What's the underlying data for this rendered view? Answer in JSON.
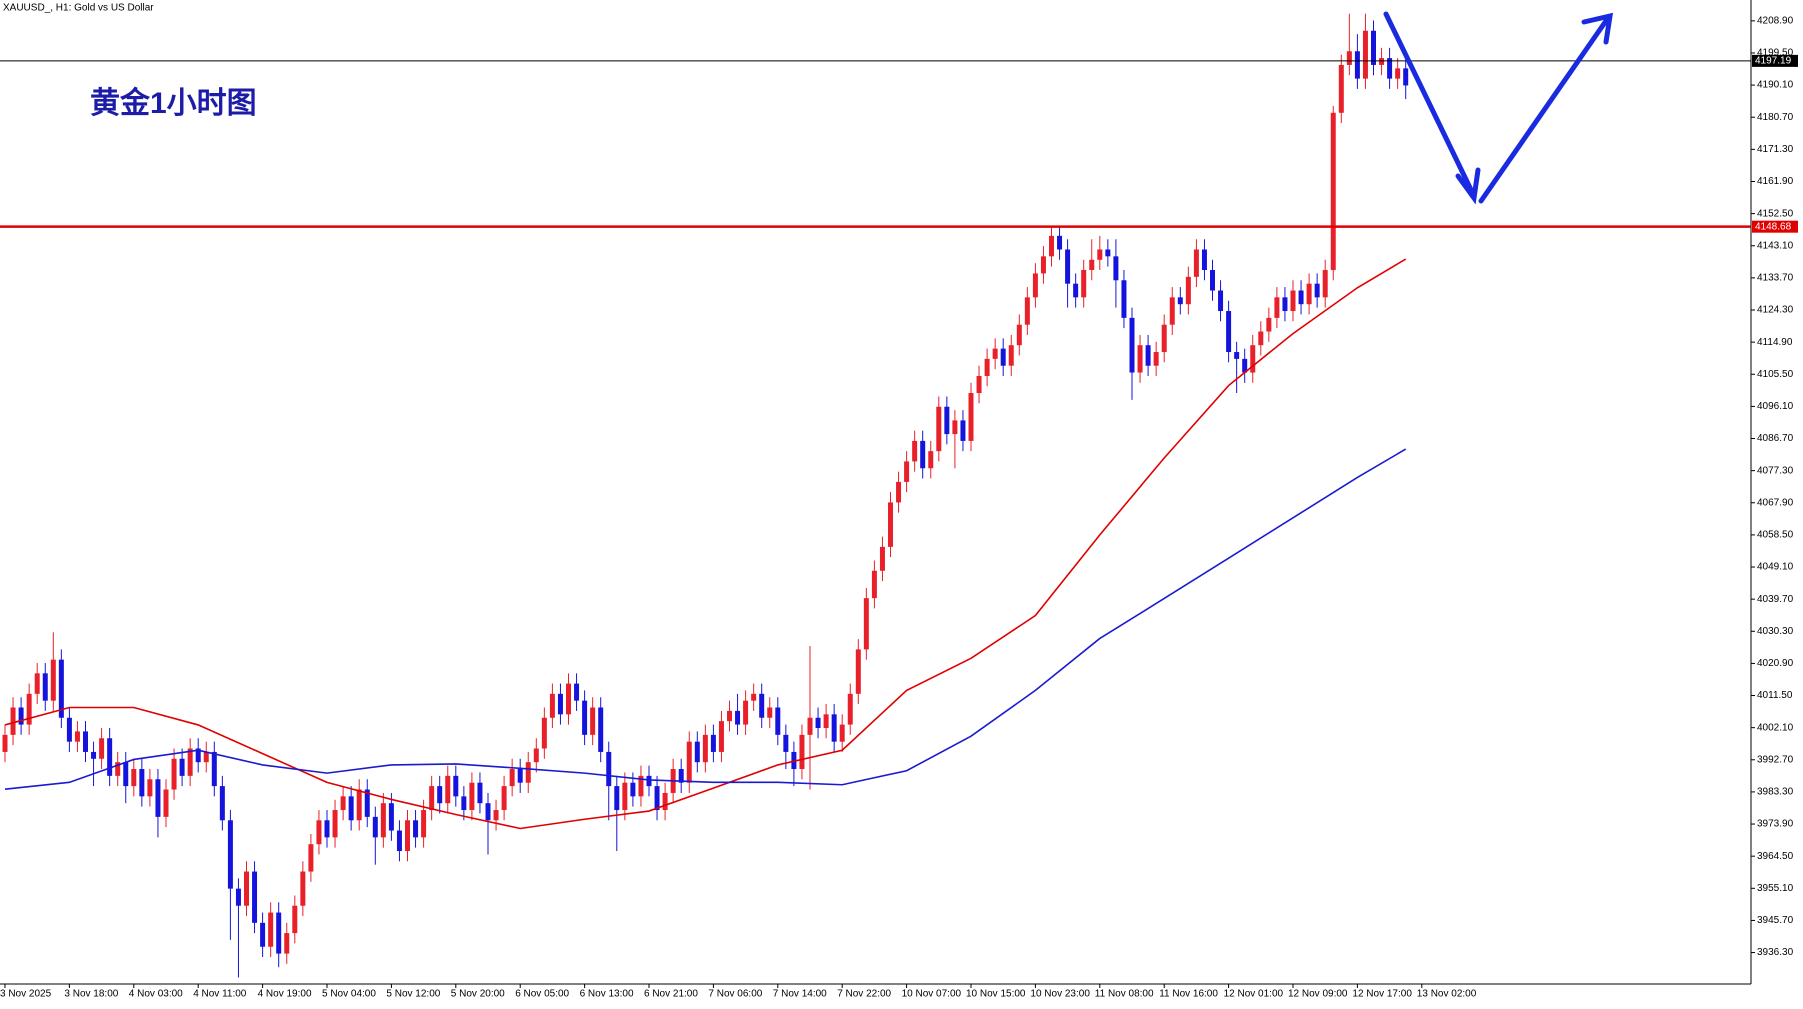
{
  "chart_data": {
    "type": "candlestick",
    "title": "XAUUSD_, H1:  Gold vs US Dollar",
    "annotation": "黄金1小时图",
    "up_color": "#e8202a",
    "down_color": "#1414dc",
    "categories": [
      "3 Nov 2025",
      null,
      null,
      null,
      null,
      null,
      null,
      null,
      "3 Nov 18:00",
      null,
      null,
      null,
      null,
      null,
      null,
      null,
      "4 Nov 03:00",
      null,
      null,
      null,
      null,
      null,
      null,
      null,
      "4 Nov 11:00",
      null,
      null,
      null,
      null,
      null,
      null,
      null,
      "4 Nov 19:00",
      null,
      null,
      null,
      null,
      null,
      null,
      null,
      "5 Nov 04:00",
      null,
      null,
      null,
      null,
      null,
      null,
      null,
      "5 Nov 12:00",
      null,
      null,
      null,
      null,
      null,
      null,
      null,
      "5 Nov 20:00",
      null,
      null,
      null,
      null,
      null,
      null,
      null,
      "6 Nov 05:00",
      null,
      null,
      null,
      null,
      null,
      null,
      null,
      "6 Nov 13:00",
      null,
      null,
      null,
      null,
      null,
      null,
      null,
      "6 Nov 21:00",
      null,
      null,
      null,
      null,
      null,
      null,
      null,
      "7 Nov 06:00",
      null,
      null,
      null,
      null,
      null,
      null,
      null,
      "7 Nov 14:00",
      null,
      null,
      null,
      null,
      null,
      null,
      null,
      "7 Nov 22:00",
      null,
      null,
      null,
      null,
      null,
      null,
      null,
      "10 Nov 07:00",
      null,
      null,
      null,
      null,
      null,
      null,
      null,
      "10 Nov 15:00",
      null,
      null,
      null,
      null,
      null,
      null,
      null,
      "10 Nov 23:00",
      null,
      null,
      null,
      null,
      null,
      null,
      null,
      "11 Nov 08:00",
      null,
      null,
      null,
      null,
      null,
      null,
      null,
      "11 Nov 16:00",
      null,
      null,
      null,
      null,
      null,
      null,
      null,
      "12 Nov 01:00",
      null,
      null,
      null,
      null,
      null,
      null,
      null,
      "12 Nov 09:00",
      null,
      null,
      null,
      null,
      null,
      null,
      null,
      "12 Nov 17:00",
      null,
      null,
      null,
      null,
      null,
      null,
      null,
      "13 Nov 02:00"
    ],
    "open": [
      3995,
      4000,
      4008,
      4003,
      4012,
      4018,
      4010,
      4022,
      4005,
      3998,
      4001,
      3995,
      3993,
      3999,
      3988,
      3992,
      3985,
      3990,
      3982,
      3987,
      3976,
      3984,
      3993,
      3988,
      3996,
      3992,
      3995,
      3985,
      3975,
      3955,
      3950,
      3960,
      3945,
      3938,
      3948,
      3936,
      3942,
      3950,
      3960,
      3968,
      3975,
      3970,
      3978,
      3982,
      3975,
      3984,
      3976,
      3970,
      3980,
      3972,
      3966,
      3975,
      3970,
      3978,
      3985,
      3980,
      3988,
      3982,
      3978,
      3986,
      3980,
      3975,
      3978,
      3985,
      3990,
      3986,
      3992,
      3996,
      4005,
      4012,
      4006,
      4015,
      4010,
      4000,
      4008,
      3995,
      3985,
      3978,
      3986,
      3982,
      3988,
      3985,
      3978,
      3983,
      3990,
      3986,
      3998,
      3992,
      4000,
      3995,
      4004,
      4007,
      4003,
      4010,
      4012,
      4005,
      4008,
      4000,
      3995,
      3990,
      4000,
      4005,
      4002,
      4006,
      3998,
      4003,
      4012,
      4025,
      4040,
      4048,
      4055,
      4068,
      4074,
      4080,
      4086,
      4078,
      4083,
      4096,
      4088,
      4092,
      4086,
      4100,
      4105,
      4110,
      4113,
      4108,
      4114,
      4120,
      4128,
      4135,
      4140,
      4146,
      4142,
      4132,
      4128,
      4136,
      4139,
      4142,
      4140,
      4133,
      4122,
      4106,
      4114,
      4108,
      4112,
      4120,
      4128,
      4126,
      4134,
      4142,
      4136,
      4130,
      4124,
      4112,
      4110,
      4106,
      4114,
      4118,
      4122,
      4128,
      4124,
      4130,
      4126,
      4132,
      4128,
      4136,
      4182,
      4196,
      4200,
      4192,
      4206,
      4196,
      4198,
      4192,
      4195,
      null,
      null
    ],
    "high": [
      4003,
      4011,
      4011,
      4015,
      4021,
      4021,
      4030,
      4025,
      4008,
      4004,
      4004,
      3998,
      4002,
      4002,
      3995,
      3995,
      3993,
      3993,
      3990,
      3990,
      3987,
      3996,
      3996,
      3999,
      3999,
      3998,
      3998,
      3988,
      3978,
      3958,
      3963,
      3963,
      3948,
      3951,
      3951,
      3945,
      3953,
      3963,
      3971,
      3978,
      3978,
      3981,
      3985,
      3985,
      3987,
      3987,
      3979,
      3983,
      3983,
      3975,
      3978,
      3978,
      3981,
      3988,
      3988,
      3991,
      3991,
      3985,
      3989,
      3989,
      3983,
      3981,
      3988,
      3993,
      3993,
      3995,
      3999,
      4008,
      4015,
      4015,
      4018,
      4018,
      4013,
      4011,
      4011,
      3998,
      3988,
      3989,
      3989,
      3991,
      3991,
      3988,
      3986,
      3993,
      3993,
      4001,
      4001,
      4003,
      4003,
      4007,
      4010,
      4012,
      4013,
      4015,
      4015,
      4011,
      4011,
      4003,
      3998,
      4003,
      4026,
      4008,
      4009,
      4009,
      4006,
      4015,
      4028,
      4043,
      4051,
      4058,
      4071,
      4077,
      4083,
      4089,
      4089,
      4086,
      4099,
      4099,
      4095,
      4095,
      4103,
      4108,
      4113,
      4116,
      4116,
      4117,
      4123,
      4131,
      4138,
      4143,
      4149,
      4149,
      4145,
      4135,
      4139,
      4145,
      4146,
      4145,
      4145,
      4136,
      4125,
      4117,
      4117,
      4115,
      4123,
      4131,
      4131,
      4137,
      4145,
      4145,
      4139,
      4133,
      4127,
      4115,
      4113,
      4117,
      4121,
      4125,
      4131,
      4131,
      4133,
      4133,
      4135,
      4135,
      4139,
      4184,
      4199,
      4211,
      4205,
      4211,
      4209,
      4201,
      4201,
      4198,
      4198,
      null,
      null
    ],
    "low": [
      3992,
      3997,
      4000,
      4000,
      4009,
      4007,
      4007,
      4002,
      3995,
      3995,
      3992,
      3985,
      3990,
      3985,
      3985,
      3980,
      3982,
      3979,
      3979,
      3970,
      3973,
      3981,
      3985,
      3985,
      3989,
      3989,
      3982,
      3972,
      3940,
      3929,
      3947,
      3942,
      3935,
      3935,
      3932,
      3933,
      3939,
      3947,
      3957,
      3965,
      3967,
      3967,
      3975,
      3972,
      3972,
      3973,
      3962,
      3967,
      3969,
      3963,
      3963,
      3967,
      3967,
      3975,
      3977,
      3977,
      3979,
      3975,
      3975,
      3977,
      3965,
      3972,
      3975,
      3982,
      3983,
      3983,
      3989,
      3993,
      4002,
      4003,
      4003,
      4007,
      3997,
      3997,
      3992,
      3975,
      3966,
      3975,
      3979,
      3979,
      3982,
      3975,
      3975,
      3980,
      3983,
      3983,
      3989,
      3989,
      3992,
      3992,
      4001,
      4000,
      4000,
      4007,
      4002,
      4002,
      3997,
      3990,
      3985,
      3987,
      3984,
      3999,
      3999,
      3995,
      3995,
      4000,
      4009,
      4022,
      4037,
      4045,
      4052,
      4065,
      4071,
      4077,
      4075,
      4075,
      4080,
      4085,
      4078,
      4083,
      4083,
      4097,
      4102,
      4107,
      4105,
      4105,
      4111,
      4117,
      4125,
      4132,
      4137,
      4139,
      4125,
      4125,
      4125,
      4133,
      4136,
      4137,
      4125,
      4119,
      4098,
      4103,
      4105,
      4105,
      4109,
      4117,
      4123,
      4123,
      4131,
      4133,
      4127,
      4121,
      4109,
      4100,
      4103,
      4103,
      4111,
      4115,
      4119,
      4121,
      4121,
      4123,
      4123,
      4125,
      4125,
      4133,
      4179,
      4193,
      4189,
      4189,
      4193,
      4193,
      4189,
      4189,
      4186,
      null,
      null
    ],
    "close": [
      4000,
      4008,
      4003,
      4012,
      4018,
      4010,
      4022,
      4005,
      3998,
      4001,
      3995,
      3993,
      3999,
      3988,
      3992,
      3985,
      3990,
      3982,
      3987,
      3976,
      3984,
      3993,
      3988,
      3996,
      3992,
      3995,
      3985,
      3975,
      3955,
      3950,
      3960,
      3945,
      3938,
      3948,
      3936,
      3942,
      3950,
      3960,
      3968,
      3975,
      3970,
      3978,
      3982,
      3975,
      3984,
      3976,
      3970,
      3980,
      3972,
      3966,
      3975,
      3970,
      3978,
      3985,
      3980,
      3988,
      3982,
      3978,
      3986,
      3980,
      3975,
      3978,
      3985,
      3990,
      3986,
      3992,
      3996,
      4005,
      4012,
      4006,
      4015,
      4010,
      4000,
      4008,
      3995,
      3985,
      3978,
      3986,
      3982,
      3988,
      3985,
      3978,
      3983,
      3990,
      3986,
      3998,
      3992,
      4000,
      3995,
      4004,
      4007,
      4003,
      4010,
      4012,
      4005,
      4008,
      4000,
      3995,
      3990,
      4000,
      4005,
      4002,
      4006,
      3998,
      4003,
      4012,
      4025,
      4040,
      4048,
      4055,
      4068,
      4074,
      4080,
      4086,
      4078,
      4083,
      4096,
      4088,
      4092,
      4086,
      4100,
      4105,
      4110,
      4113,
      4108,
      4114,
      4120,
      4128,
      4135,
      4140,
      4146,
      4142,
      4132,
      4128,
      4136,
      4139,
      4142,
      4140,
      4133,
      4122,
      4106,
      4114,
      4108,
      4112,
      4120,
      4128,
      4126,
      4134,
      4142,
      4136,
      4130,
      4124,
      4112,
      4110,
      4106,
      4114,
      4118,
      4122,
      4128,
      4124,
      4130,
      4126,
      4132,
      4128,
      4136,
      4182,
      4196,
      4200,
      4192,
      4206,
      4196,
      4198,
      4192,
      4195,
      4190,
      null,
      null
    ],
    "series": [
      {
        "color": "#e00000",
        "x": [
          0,
          8,
          16,
          24,
          32,
          40,
          48,
          56,
          64,
          72,
          80,
          88,
          96,
          104,
          112,
          120,
          128,
          136,
          144,
          152,
          160,
          168,
          174
        ],
        "values": [
          4002.9,
          4008.0,
          4008.0,
          4002.9,
          3994.5,
          3986.1,
          3981.1,
          3976.7,
          3972.6,
          3975.3,
          3977.7,
          3984.4,
          3991.2,
          3995.5,
          4013.0,
          4022.4,
          4034.9,
          4058.5,
          4081.0,
          4102.2,
          4117.4,
          4130.8,
          4139.2
        ]
      },
      {
        "color": "#1a1ad0",
        "x": [
          0,
          8,
          16,
          24,
          32,
          40,
          48,
          56,
          64,
          72,
          80,
          88,
          96,
          104,
          112,
          120,
          128,
          136,
          144,
          152,
          160,
          168,
          174
        ],
        "values": [
          3984.1,
          3986.1,
          3992.8,
          3995.5,
          3991.2,
          3988.8,
          3991.2,
          3991.5,
          3990.2,
          3988.8,
          3986.8,
          3986.1,
          3986.1,
          3985.4,
          3989.5,
          3999.6,
          4013.0,
          4028.2,
          4039.9,
          4051.7,
          4063.5,
          4075.3,
          4083.6
        ]
      }
    ],
    "price_lines": [
      {
        "value": 4197.19,
        "color": "#000000"
      },
      {
        "value": 4148.68,
        "color": "#e00000"
      }
    ],
    "ylim": [
      3927.1,
      4215.0
    ],
    "yticks": [
      {
        "value": 3936.3,
        "label": "3936.30"
      },
      {
        "value": 3945.7,
        "label": "3945.70"
      },
      {
        "value": 3955.1,
        "label": "3955.10"
      },
      {
        "value": 3964.5,
        "label": "3964.50"
      },
      {
        "value": 3973.9,
        "label": "3973.90"
      },
      {
        "value": 3983.3,
        "label": "3983.30"
      },
      {
        "value": 3992.7,
        "label": "3992.70"
      },
      {
        "value": 4002.1,
        "label": "4002.10"
      },
      {
        "value": 4011.5,
        "label": "4011.50"
      },
      {
        "value": 4020.9,
        "label": "4020.90"
      },
      {
        "value": 4030.3,
        "label": "4030.30"
      },
      {
        "value": 4039.7,
        "label": "4039.70"
      },
      {
        "value": 4049.1,
        "label": "4049.10"
      },
      {
        "value": 4058.5,
        "label": "4058.50"
      },
      {
        "value": 4067.9,
        "label": "4067.90"
      },
      {
        "value": 4077.3,
        "label": "4077.30"
      },
      {
        "value": 4086.7,
        "label": "4086.70"
      },
      {
        "value": 4096.1,
        "label": "4096.10"
      },
      {
        "value": 4105.5,
        "label": "4105.50"
      },
      {
        "value": 4114.9,
        "label": "4114.90"
      },
      {
        "value": 4124.3,
        "label": "4124.30"
      },
      {
        "value": 4133.7,
        "label": "4133.70"
      },
      {
        "value": 4143.1,
        "label": "4143.10"
      },
      {
        "value": 4152.5,
        "label": "4152.50"
      },
      {
        "value": 4161.9,
        "label": "4161.90"
      },
      {
        "value": 4171.3,
        "label": "4171.30"
      },
      {
        "value": 4180.7,
        "label": "4180.70"
      },
      {
        "value": 4190.1,
        "label": "4190.10"
      },
      {
        "value": 4199.5,
        "label": "4199.50"
      },
      {
        "value": 4208.9,
        "label": "4208.90"
      }
    ]
  }
}
